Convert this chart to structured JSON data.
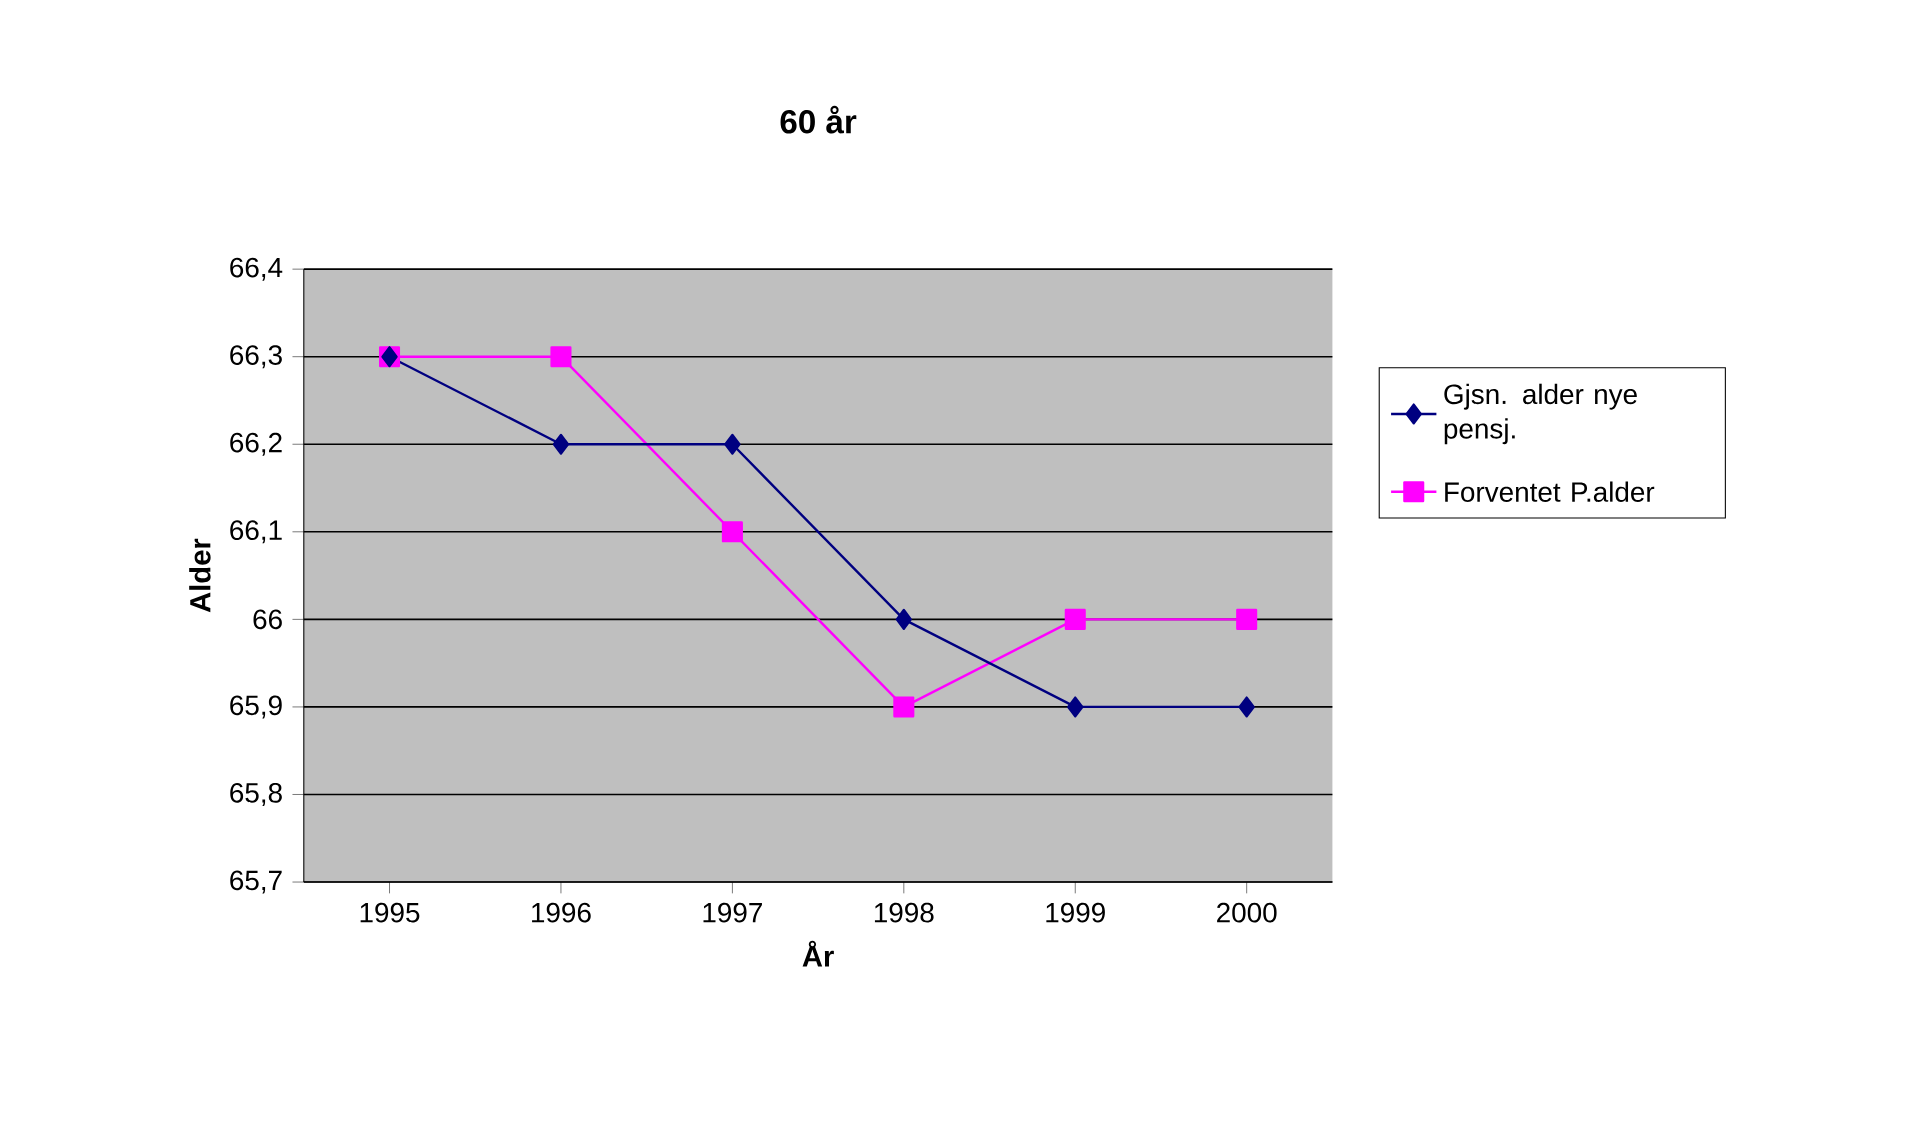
{
  "chart_data": {
    "type": "line",
    "title": "60 år",
    "xlabel": "År",
    "ylabel": "Alder",
    "categories": [
      "1995",
      "1996",
      "1997",
      "1998",
      "1999",
      "2000"
    ],
    "series": [
      {
        "name": "Gjsn. alder nye pensj.",
        "color": "#000080",
        "marker": "diamond",
        "values": [
          66.3,
          66.2,
          66.2,
          66.0,
          65.9,
          65.9
        ]
      },
      {
        "name": "Forventet P.alder",
        "color": "#ff00ff",
        "marker": "square",
        "values": [
          66.3,
          66.3,
          66.1,
          65.9,
          66.0,
          66.0
        ]
      }
    ],
    "ylim": [
      65.7,
      66.4
    ],
    "yticks": [
      {
        "value": 65.7,
        "label": "65,7"
      },
      {
        "value": 65.8,
        "label": "65,8"
      },
      {
        "value": 65.9,
        "label": "65,9"
      },
      {
        "value": 66,
        "label": "66"
      },
      {
        "value": 66.1,
        "label": "66,1"
      },
      {
        "value": 66.2,
        "label": "66,2"
      },
      {
        "value": 66.3,
        "label": "66,3"
      },
      {
        "value": 66.4,
        "label": "66,4"
      }
    ],
    "grid": "y",
    "legend": "right",
    "line_style": "solid"
  }
}
